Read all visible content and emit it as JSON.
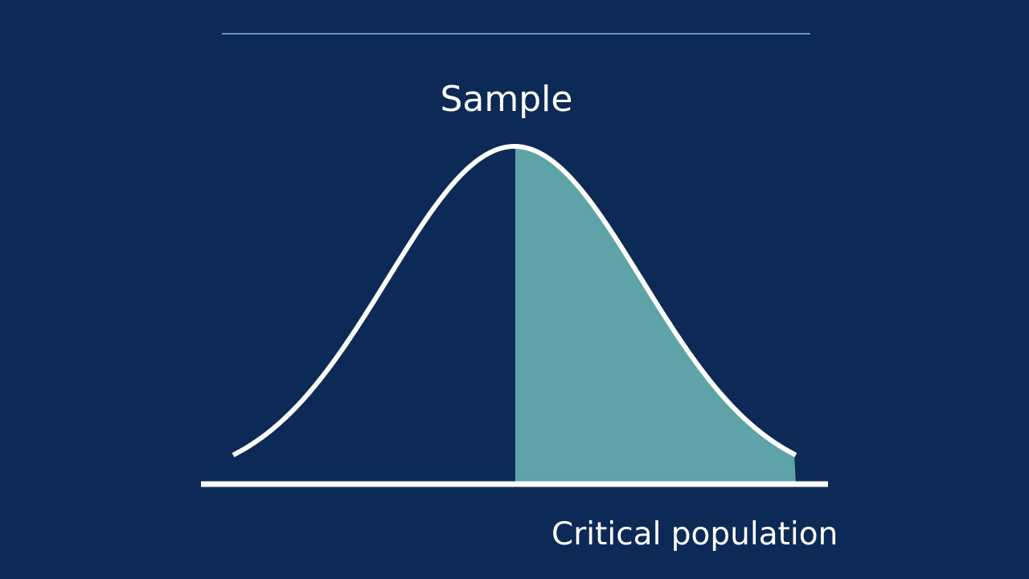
{
  "labels": {
    "top": "Sample",
    "bottom": "Critical population"
  }
}
